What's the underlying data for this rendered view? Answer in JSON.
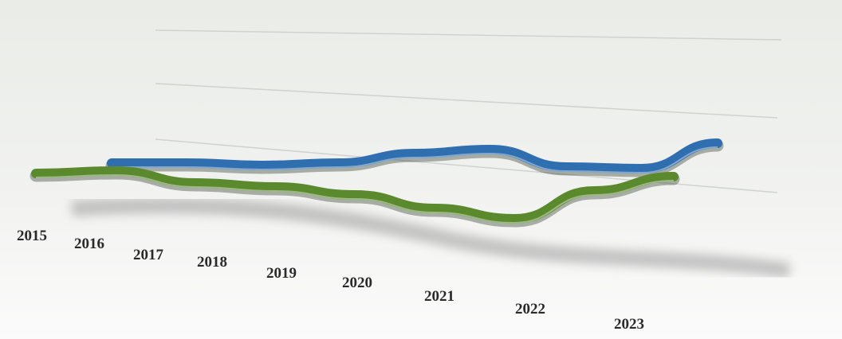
{
  "chart_data": {
    "type": "line",
    "categories": [
      "2015",
      "2016",
      "2017",
      "2018",
      "2019",
      "2020",
      "2021",
      "2022",
      "2023"
    ],
    "series": [
      {
        "color": "#2f6fb0",
        "values": [
          47.5,
          47.5,
          46,
          47.5,
          53.5,
          56,
          45,
          44,
          60
        ]
      },
      {
        "color": "#5b8a2e",
        "values": [
          41,
          42.5,
          35,
          32.5,
          27.5,
          19,
          12.5,
          30,
          39
        ]
      }
    ],
    "ylim": [
      0,
      100
    ]
  }
}
